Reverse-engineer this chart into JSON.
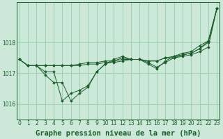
{
  "background_color": "#cce8d8",
  "grid_color": "#99ccaa",
  "line_color": "#1a5c2a",
  "marker_color": "#1a5c2a",
  "xlabel": "Graphe pression niveau de la mer (hPa)",
  "xlabel_fontsize": 7.5,
  "yticks": [
    1016,
    1017,
    1018
  ],
  "xticks": [
    0,
    1,
    2,
    3,
    4,
    5,
    6,
    7,
    8,
    9,
    10,
    11,
    12,
    13,
    14,
    15,
    16,
    17,
    18,
    19,
    20,
    21,
    22,
    23
  ],
  "ylim": [
    1015.5,
    1019.3
  ],
  "xlim": [
    -0.3,
    23.3
  ],
  "series": [
    [
      1017.45,
      1017.25,
      1017.25,
      1017.25,
      1017.25,
      1017.25,
      1017.25,
      1017.25,
      1017.3,
      1017.3,
      1017.35,
      1017.35,
      1017.4,
      1017.45,
      1017.45,
      1017.4,
      1017.4,
      1017.5,
      1017.5,
      1017.55,
      1017.6,
      1017.7,
      1017.85,
      1019.1
    ],
    [
      1017.45,
      1017.25,
      1017.25,
      1017.25,
      1017.25,
      1017.25,
      1017.25,
      1017.3,
      1017.35,
      1017.35,
      1017.4,
      1017.4,
      1017.45,
      1017.45,
      1017.45,
      1017.4,
      1017.4,
      1017.5,
      1017.55,
      1017.6,
      1017.65,
      1017.8,
      1018.0,
      1019.1
    ],
    [
      1017.45,
      1017.25,
      1017.25,
      1017.05,
      1017.05,
      1016.1,
      1016.35,
      1016.45,
      1016.6,
      1017.05,
      1017.3,
      1017.4,
      1017.5,
      1017.45,
      1017.45,
      1017.35,
      1017.2,
      1017.35,
      1017.5,
      1017.6,
      1017.65,
      1017.8,
      1018.05,
      1019.1
    ],
    [
      1017.45,
      1017.25,
      1017.25,
      1016.95,
      1016.7,
      1016.7,
      1016.1,
      1016.35,
      1016.55,
      1017.05,
      1017.3,
      1017.45,
      1017.55,
      1017.45,
      1017.45,
      1017.3,
      1017.15,
      1017.4,
      1017.55,
      1017.65,
      1017.7,
      1017.9,
      1018.05,
      1019.1
    ]
  ]
}
